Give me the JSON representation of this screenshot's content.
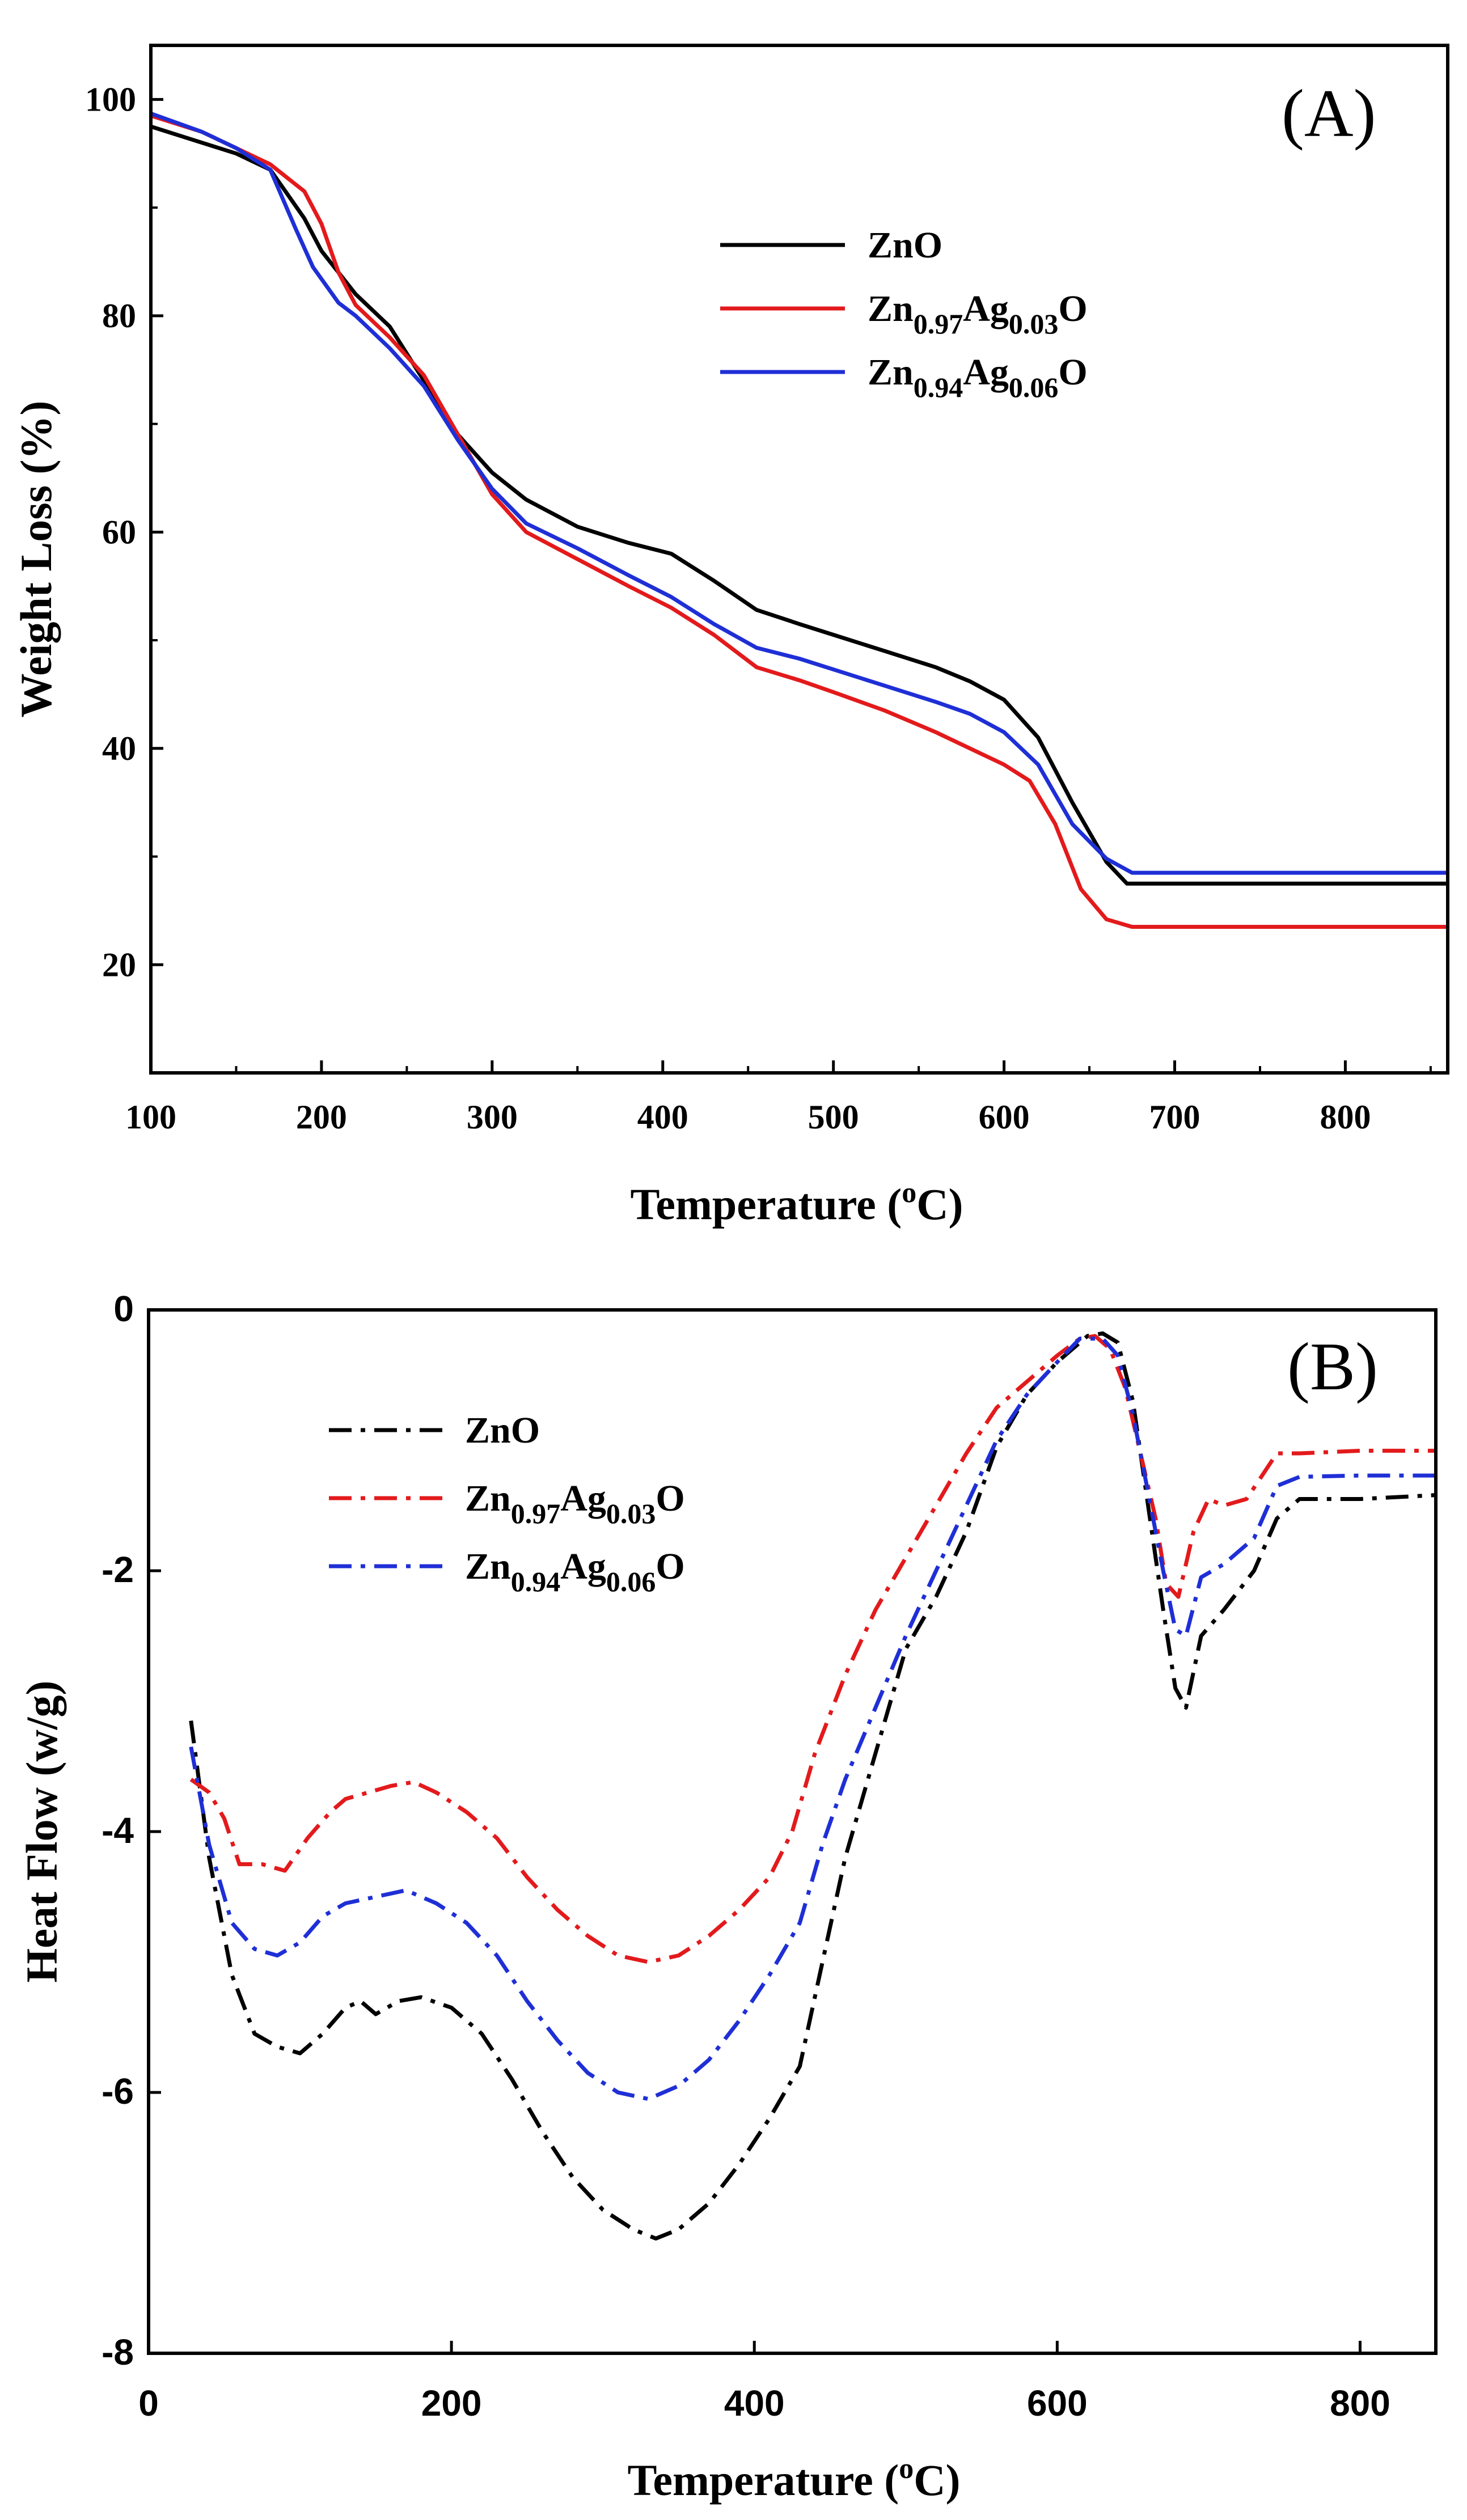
{
  "chart_data": [
    {
      "type": "line",
      "panel_label": "(A)",
      "xlabel": "Temperature (",
      "xlabel_sup": "o",
      "xlabel_tail": "C)",
      "ylabel": "Weight Loss (%)",
      "xlim": [
        100,
        860
      ],
      "ylim": [
        10,
        105
      ],
      "x_ticks": [
        100,
        200,
        300,
        400,
        500,
        600,
        700,
        800
      ],
      "y_ticks": [
        20,
        40,
        60,
        80,
        100
      ],
      "legend_position": "upper-right",
      "series": [
        {
          "name": "ZnO",
          "legend": {
            "base": "ZnO",
            "parts": []
          },
          "color": "#000000",
          "style": "solid",
          "x": [
            100,
            130,
            150,
            170,
            190,
            200,
            220,
            240,
            260,
            280,
            300,
            320,
            350,
            380,
            405,
            430,
            455,
            480,
            500,
            530,
            560,
            580,
            600,
            620,
            640,
            660,
            672,
            700,
            750,
            800,
            860
          ],
          "y": [
            97.5,
            96,
            95,
            93.5,
            89,
            86,
            82,
            79,
            74,
            69,
            65.5,
            63,
            60.5,
            59,
            58,
            55.5,
            52.8,
            51.5,
            50.5,
            49,
            47.5,
            46.2,
            44.5,
            41,
            35,
            29.5,
            27.5,
            27.5,
            27.5,
            27.5,
            27.5
          ]
        },
        {
          "name": "Zn0.97Ag0.03O",
          "legend": {
            "base": "Zn",
            "parts": [
              {
                "sub": "0.97",
                "el": "Ag"
              },
              {
                "sub": "0.03",
                "el": "O"
              }
            ]
          },
          "color": "#e31a1c",
          "style": "solid",
          "x": [
            100,
            130,
            150,
            170,
            190,
            200,
            210,
            220,
            240,
            260,
            280,
            300,
            320,
            350,
            380,
            405,
            430,
            455,
            480,
            500,
            530,
            560,
            580,
            600,
            615,
            630,
            645,
            660,
            675,
            700,
            750,
            800,
            860
          ],
          "y": [
            98.5,
            97,
            95.5,
            94,
            91.5,
            88.5,
            84,
            81,
            78,
            74.5,
            69,
            63.5,
            60,
            57.5,
            55,
            53,
            50.5,
            47.5,
            46.3,
            45.2,
            43.5,
            41.5,
            40,
            38.5,
            37,
            33,
            27,
            24.2,
            23.5,
            23.5,
            23.5,
            23.5,
            23.5
          ]
        },
        {
          "name": "Zn0.94Ag0.06O",
          "legend": {
            "base": "Zn",
            "parts": [
              {
                "sub": "0.94",
                "el": "Ag"
              },
              {
                "sub": "0.06",
                "el": "O"
              }
            ]
          },
          "color": "#1f2fd6",
          "style": "solid",
          "x": [
            100,
            130,
            150,
            170,
            185,
            195,
            210,
            220,
            240,
            260,
            280,
            300,
            320,
            350,
            380,
            405,
            430,
            455,
            480,
            500,
            530,
            560,
            580,
            600,
            620,
            640,
            660,
            675,
            700,
            750,
            800,
            860
          ],
          "y": [
            98.7,
            97,
            95.5,
            93.5,
            88,
            84.5,
            81.2,
            80,
            77,
            73.5,
            68.5,
            64,
            60.8,
            58.5,
            56,
            54,
            51.5,
            49.3,
            48.3,
            47.3,
            45.8,
            44.3,
            43.2,
            41.5,
            38.5,
            33,
            29.8,
            28.5,
            28.5,
            28.5,
            28.5,
            28.5
          ]
        }
      ]
    },
    {
      "type": "line",
      "panel_label": "(B)",
      "xlabel": "Temperature (",
      "xlabel_sup": "o",
      "xlabel_tail": "C)",
      "ylabel": "Heat Flow (w/g)",
      "xlim": [
        0,
        850
      ],
      "ylim": [
        -8,
        0
      ],
      "x_ticks": [
        0,
        200,
        400,
        600,
        800
      ],
      "y_ticks": [
        -8,
        -6,
        -4,
        -2,
        0
      ],
      "legend_position": "upper-left",
      "series": [
        {
          "name": "ZnO",
          "legend": {
            "base": "ZnO",
            "parts": []
          },
          "color": "#000000",
          "style": "dashdot",
          "x": [
            28,
            40,
            55,
            70,
            85,
            100,
            115,
            130,
            140,
            150,
            165,
            180,
            200,
            220,
            240,
            260,
            280,
            300,
            320,
            335,
            350,
            370,
            390,
            410,
            430,
            445,
            460,
            480,
            500,
            520,
            540,
            560,
            580,
            600,
            620,
            630,
            640,
            650,
            660,
            670,
            678,
            685,
            695,
            710,
            730,
            745,
            760,
            800,
            850
          ],
          "y": [
            -3.15,
            -4.2,
            -5.1,
            -5.55,
            -5.65,
            -5.7,
            -5.55,
            -5.35,
            -5.3,
            -5.4,
            -5.3,
            -5.27,
            -5.35,
            -5.55,
            -5.9,
            -6.3,
            -6.65,
            -6.9,
            -7.05,
            -7.12,
            -7.05,
            -6.85,
            -6.55,
            -6.2,
            -5.8,
            -5.0,
            -4.2,
            -3.4,
            -2.6,
            -2.2,
            -1.7,
            -1.05,
            -0.65,
            -0.4,
            -0.2,
            -0.18,
            -0.25,
            -0.7,
            -1.5,
            -2.3,
            -2.9,
            -3.05,
            -2.5,
            -2.3,
            -2.0,
            -1.6,
            -1.45,
            -1.45,
            -1.42
          ]
        },
        {
          "name": "Zn0.97Ag0.03O",
          "legend": {
            "base": "Zn",
            "parts": [
              {
                "sub": "0.97",
                "el": "Ag"
              },
              {
                "sub": "0.03",
                "el": "O"
              }
            ]
          },
          "color": "#e31a1c",
          "style": "dashdot",
          "x": [
            28,
            40,
            50,
            60,
            75,
            90,
            105,
            120,
            130,
            145,
            160,
            175,
            190,
            210,
            230,
            250,
            270,
            290,
            310,
            330,
            350,
            370,
            390,
            410,
            425,
            440,
            460,
            480,
            500,
            520,
            540,
            560,
            580,
            600,
            615,
            625,
            635,
            645,
            655,
            665,
            672,
            680,
            690,
            700,
            710,
            725,
            745,
            760,
            800,
            850
          ],
          "y": [
            -3.6,
            -3.7,
            -3.9,
            -4.25,
            -4.25,
            -4.3,
            -4.05,
            -3.85,
            -3.75,
            -3.7,
            -3.65,
            -3.62,
            -3.7,
            -3.85,
            -4.05,
            -4.35,
            -4.6,
            -4.8,
            -4.95,
            -5.0,
            -4.95,
            -4.8,
            -4.6,
            -4.35,
            -4.0,
            -3.4,
            -2.8,
            -2.3,
            -1.9,
            -1.5,
            -1.1,
            -0.75,
            -0.55,
            -0.35,
            -0.22,
            -0.2,
            -0.3,
            -0.6,
            -1.1,
            -1.6,
            -2.1,
            -2.2,
            -1.7,
            -1.45,
            -1.5,
            -1.45,
            -1.1,
            -1.1,
            -1.08,
            -1.08
          ]
        },
        {
          "name": "Zn0.94Ag0.06O",
          "legend": {
            "base": "Zn",
            "parts": [
              {
                "sub": "0.94",
                "el": "Ag"
              },
              {
                "sub": "0.06",
                "el": "O"
              }
            ]
          },
          "color": "#1f2fd6",
          "style": "dashdot",
          "x": [
            28,
            40,
            55,
            70,
            85,
            100,
            115,
            130,
            150,
            170,
            190,
            210,
            230,
            250,
            270,
            290,
            310,
            330,
            350,
            370,
            390,
            410,
            430,
            445,
            460,
            480,
            500,
            520,
            540,
            560,
            580,
            600,
            615,
            630,
            640,
            650,
            660,
            670,
            678,
            685,
            695,
            710,
            730,
            745,
            760,
            800,
            850
          ],
          "y": [
            -3.35,
            -4.1,
            -4.7,
            -4.9,
            -4.95,
            -4.85,
            -4.65,
            -4.55,
            -4.5,
            -4.45,
            -4.55,
            -4.7,
            -4.95,
            -5.3,
            -5.6,
            -5.85,
            -6.0,
            -6.05,
            -5.95,
            -5.75,
            -5.45,
            -5.1,
            -4.7,
            -4.1,
            -3.6,
            -3.05,
            -2.5,
            -2.0,
            -1.5,
            -1.0,
            -0.65,
            -0.4,
            -0.22,
            -0.22,
            -0.35,
            -0.8,
            -1.4,
            -2.0,
            -2.45,
            -2.5,
            -2.05,
            -1.95,
            -1.75,
            -1.35,
            -1.28,
            -1.27,
            -1.27
          ]
        }
      ]
    }
  ]
}
